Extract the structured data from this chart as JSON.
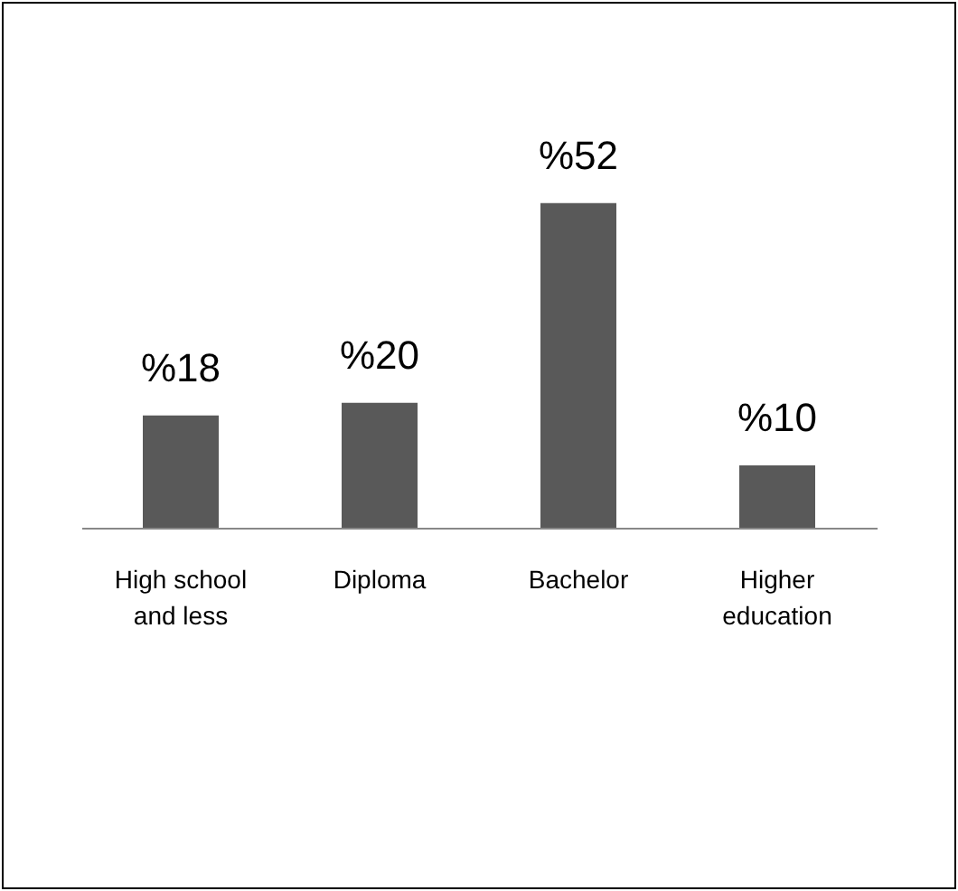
{
  "chart_data": {
    "type": "bar",
    "categories": [
      "High school and less",
      "Diploma",
      "Bachelor",
      "Higher education"
    ],
    "values": [
      18,
      20,
      52,
      10
    ],
    "value_labels": [
      "%18",
      "%20",
      "%52",
      "%10"
    ],
    "color": "#595959"
  }
}
